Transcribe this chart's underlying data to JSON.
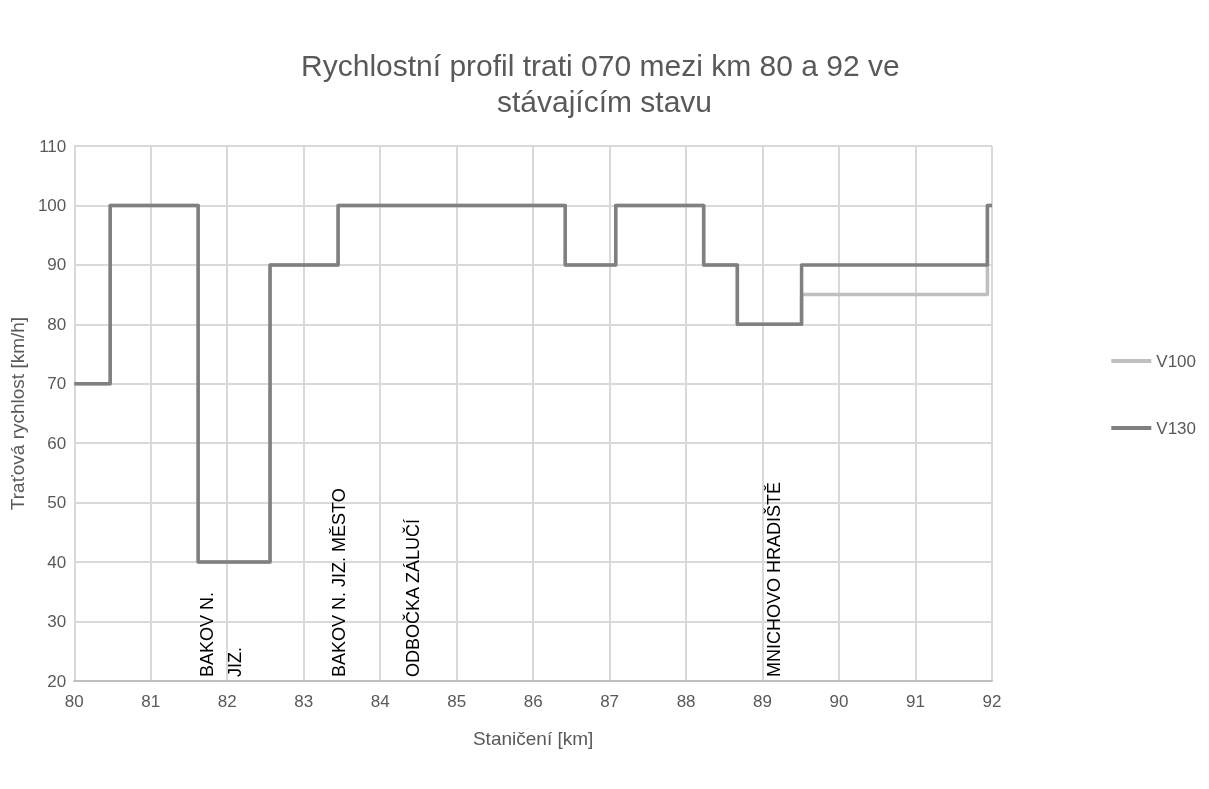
{
  "chart_data": {
    "type": "step",
    "title": "Rychlostní profil trati 070 mezi km 80 a 92 ve stávajícím stavu",
    "xlabel": "Staničení [km]",
    "ylabel": "Traťová rychlost [km/h]",
    "series": [
      {
        "name": "V100",
        "color": "#bfbfbf",
        "x": [
          80,
          80.47,
          81.62,
          82.56,
          83.45,
          86.42,
          87.08,
          88.23,
          88.67,
          89.51,
          91.94,
          92
        ],
        "values": [
          70,
          100,
          40,
          90,
          100,
          90,
          100,
          90,
          80,
          85,
          100,
          100
        ]
      },
      {
        "name": "V130",
        "color": "#808080",
        "x": [
          80,
          80.47,
          81.62,
          82.56,
          83.45,
          86.42,
          87.08,
          88.23,
          88.67,
          89.51,
          91.94,
          92
        ],
        "values": [
          70,
          100,
          40,
          90,
          100,
          90,
          100,
          90,
          80,
          90,
          100,
          100
        ]
      }
    ],
    "xlim": [
      80,
      92
    ],
    "xticks": [
      80,
      81,
      82,
      83,
      84,
      85,
      86,
      87,
      88,
      89,
      90,
      91,
      92
    ],
    "ylim": [
      20,
      110
    ],
    "yticks": [
      20,
      30,
      40,
      50,
      60,
      70,
      80,
      90,
      100,
      110
    ],
    "grid": true,
    "legend": "right",
    "marker": "none",
    "line_style": "solid",
    "annotations": [
      "BAKOV N.\nJIZ.",
      "BAKOV N. JIZ. MĚSTO",
      "ODBOČKA ZÁLUČÍ",
      "MNICHOVO HRADIŠTĚ"
    ]
  }
}
